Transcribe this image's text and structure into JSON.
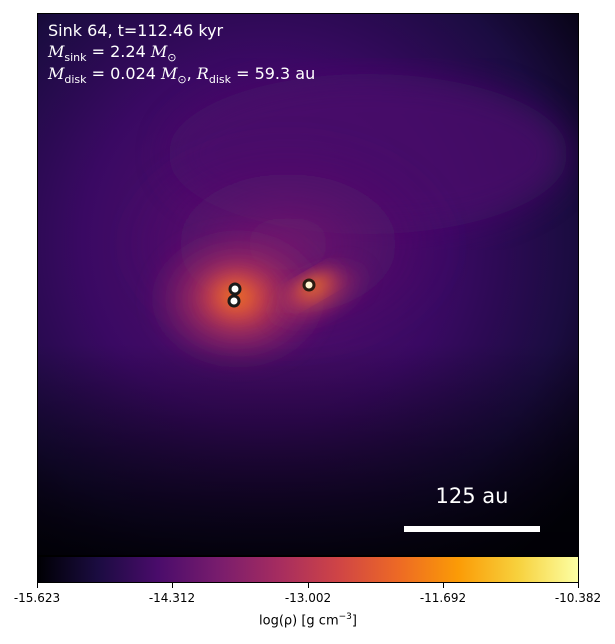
{
  "info": {
    "sink_label": "Sink 64, t=112.46 kyr",
    "sink_mass_lhs": "M",
    "sink_mass_sub": "sink",
    "sink_mass_value": "= 2.24",
    "sun_symbol": "M",
    "sun_sub": "⊙",
    "disk_mass_lhs": "M",
    "disk_mass_sub": "disk",
    "disk_mass_value": "= 0.024",
    "disk_radius_lhs": "R",
    "disk_radius_sub": "disk",
    "disk_radius_value": "= 59.3 au"
  },
  "scalebar": {
    "label": "125 au"
  },
  "colorbar": {
    "ticks": [
      "-15.623",
      "-14.312",
      "-13.002",
      "-11.692",
      "-10.382"
    ],
    "label_main": "log(ρ) [g cm",
    "label_exp": "−3",
    "label_close": "]",
    "colormap": "inferno",
    "colors": [
      "#000004",
      "#1b0c41",
      "#4a0c6b",
      "#781c6d",
      "#a52c60",
      "#cf4446",
      "#ed6925",
      "#fb9b06",
      "#f7d13d",
      "#fcffa4"
    ]
  },
  "sinks": [
    {
      "name": "sink-a"
    },
    {
      "name": "sink-b"
    },
    {
      "name": "sink-c"
    }
  ]
}
